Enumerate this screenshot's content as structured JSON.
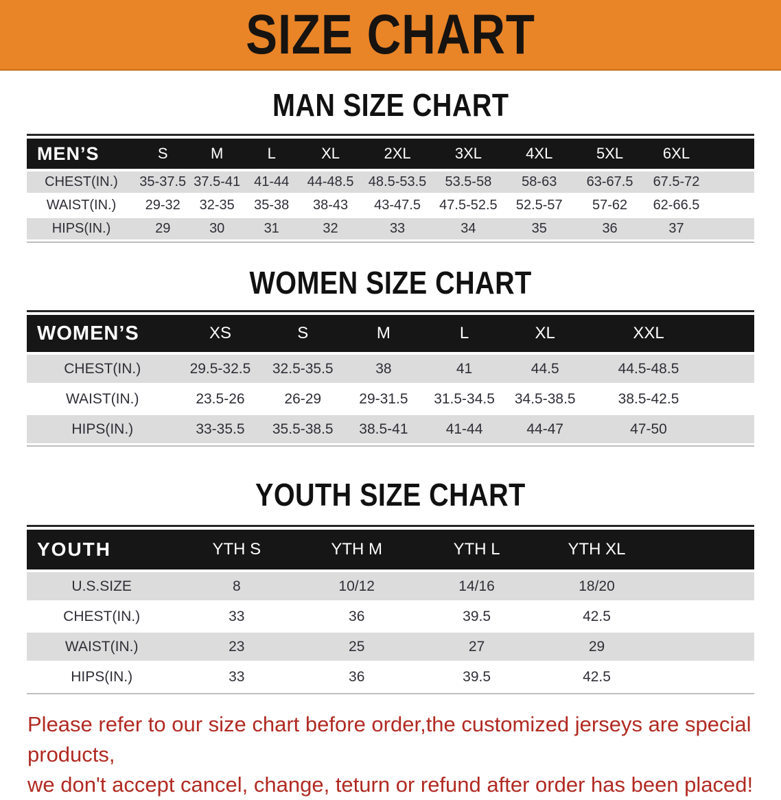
{
  "banner": {
    "title": "SIZE CHART"
  },
  "colors": {
    "banner_bg": "#e98427",
    "header_bg": "#161616",
    "row_gray": "#dcdcdc",
    "note_red": "#b12a22"
  },
  "chart_data": [
    {
      "type": "table",
      "title": "MAN SIZE CHART",
      "corner_label": "MEN’S",
      "columns": [
        "S",
        "M",
        "L",
        "XL",
        "2XL",
        "3XL",
        "4XL",
        "5XL",
        "6XL"
      ],
      "rows": [
        {
          "label": "CHEST(IN.)",
          "values": [
            "35-37.5",
            "37.5-41",
            "41-44",
            "44-48.5",
            "48.5-53.5",
            "53.5-58",
            "58-63",
            "63-67.5",
            "67.5-72"
          ]
        },
        {
          "label": "WAIST(IN.)",
          "values": [
            "29-32",
            "32-35",
            "35-38",
            "38-43",
            "43-47.5",
            "47.5-52.5",
            "52.5-57",
            "57-62",
            "62-66.5"
          ]
        },
        {
          "label": "HIPS(IN.)",
          "values": [
            "29",
            "30",
            "31",
            "32",
            "33",
            "34",
            "35",
            "36",
            "37"
          ]
        }
      ]
    },
    {
      "type": "table",
      "title": "WOMEN SIZE CHART",
      "corner_label": "WOMEN’S",
      "columns": [
        "XS",
        "S",
        "M",
        "L",
        "XL",
        "XXL"
      ],
      "rows": [
        {
          "label": "CHEST(IN.)",
          "values": [
            "29.5-32.5",
            "32.5-35.5",
            "38",
            "41",
            "44.5",
            "44.5-48.5"
          ]
        },
        {
          "label": "WAIST(IN.)",
          "values": [
            "23.5-26",
            "26-29",
            "29-31.5",
            "31.5-34.5",
            "34.5-38.5",
            "38.5-42.5"
          ]
        },
        {
          "label": "HIPS(IN.)",
          "values": [
            "33-35.5",
            "35.5-38.5",
            "38.5-41",
            "41-44",
            "44-47",
            "47-50"
          ]
        }
      ]
    },
    {
      "type": "table",
      "title": "YOUTH SIZE CHART",
      "corner_label": "YOUTH",
      "columns": [
        "YTH S",
        "YTH M",
        "YTH L",
        "YTH XL"
      ],
      "rows": [
        {
          "label": "U.S.SIZE",
          "values": [
            "8",
            "10/12",
            "14/16",
            "18/20"
          ]
        },
        {
          "label": "CHEST(IN.)",
          "values": [
            "33",
            "36",
            "39.5",
            "42.5"
          ]
        },
        {
          "label": "WAIST(IN.)",
          "values": [
            "23",
            "25",
            "27",
            "29"
          ]
        },
        {
          "label": "HIPS(IN.)",
          "values": [
            "33",
            "36",
            "39.5",
            "42.5"
          ]
        }
      ]
    }
  ],
  "footer_note": {
    "line1": "Please refer to our size chart before order,the customized jerseys are special products,",
    "line2": "we don't accept cancel, change, teturn or refund after order has been placed!"
  }
}
